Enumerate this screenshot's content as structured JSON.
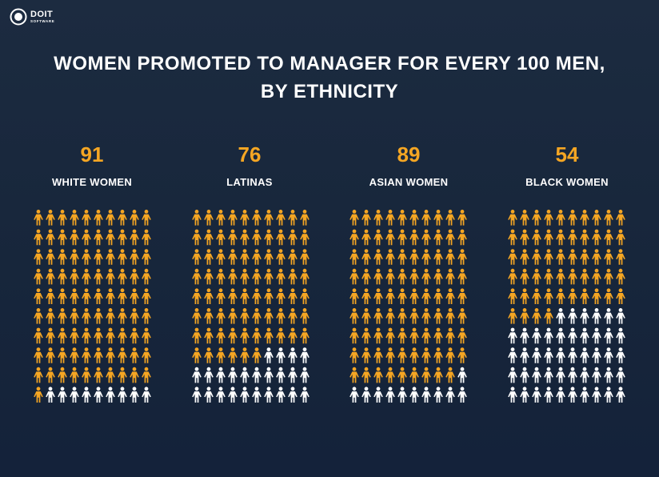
{
  "brand": {
    "name": "DOIT",
    "tagline": "SOFTWARE"
  },
  "chart_data": {
    "type": "pictogram",
    "title": "WOMEN PROMOTED TO MANAGER FOR EVERY 100 MEN, BY ETHNICITY",
    "title_lines": [
      "WOMEN PROMOTED TO MANAGER FOR EVERY 100 MEN,",
      "BY ETHNICITY"
    ],
    "total_icons": 100,
    "grid": {
      "columns": 10,
      "rows": 10
    },
    "categories": [
      "WHITE WOMEN",
      "LATINAS",
      "ASIAN WOMEN",
      "BLACK WOMEN"
    ],
    "values": [
      91,
      76,
      89,
      54
    ],
    "colors": {
      "highlighted": "#f5a623",
      "remaining": "#ffffff"
    }
  }
}
